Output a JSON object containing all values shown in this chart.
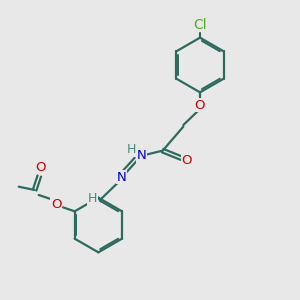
{
  "bg_color": "#e8e8e8",
  "bond_color": "#2d6b5e",
  "atom_colors": {
    "O": "#cc0000",
    "N": "#0000cc",
    "Cl": "#55aa33",
    "H": "#4a8a7a",
    "C": "#2d6b5e"
  },
  "line_width": 1.6,
  "font_size": 9.5
}
